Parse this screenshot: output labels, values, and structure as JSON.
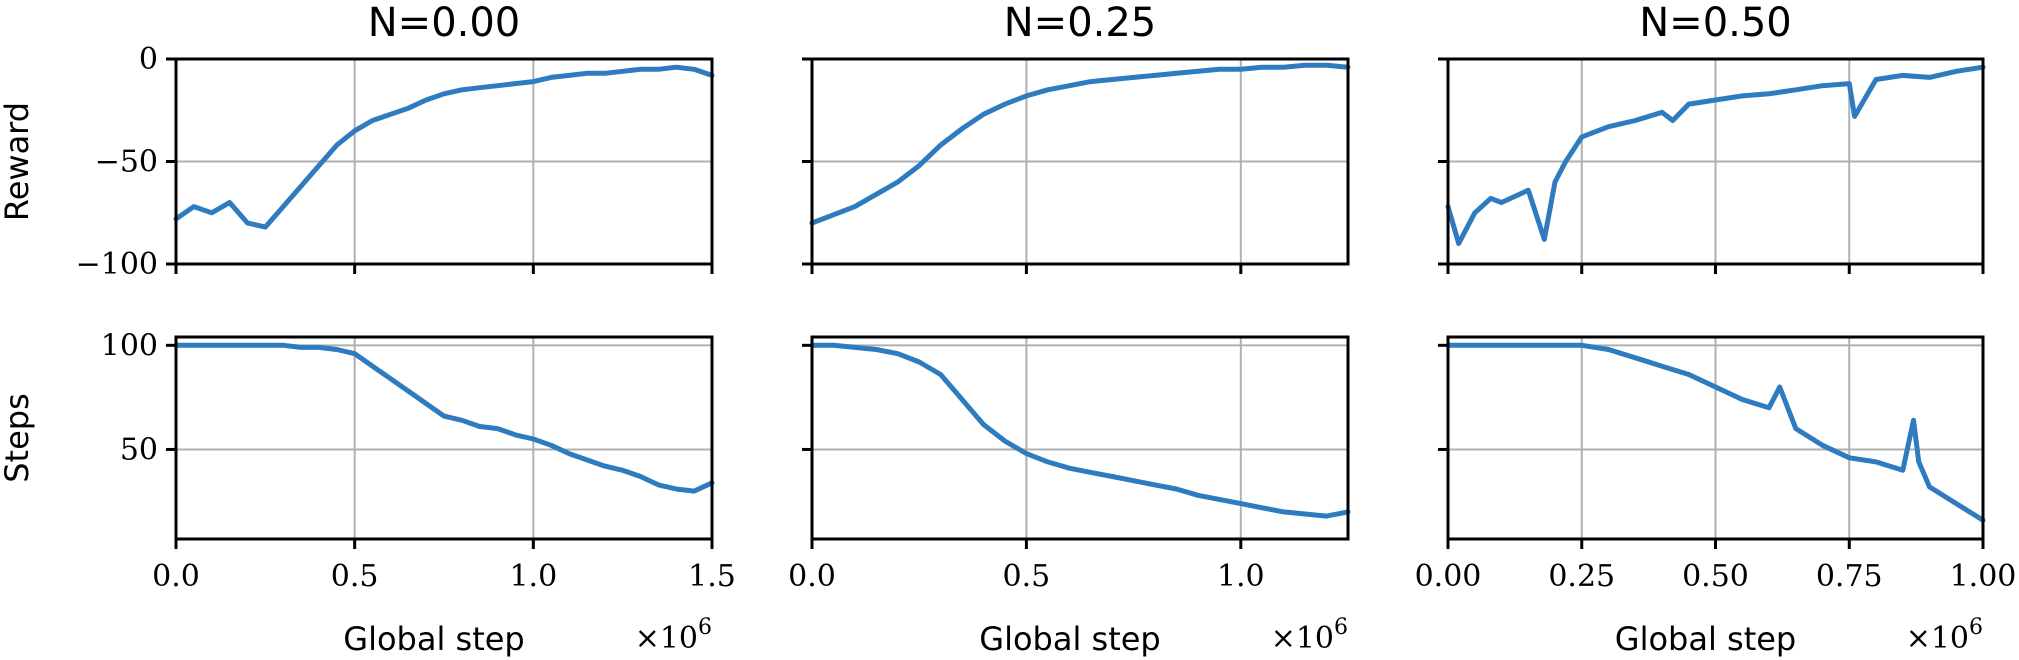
{
  "chart_data": [
    {
      "type": "line",
      "title": "N=0.00",
      "row": "reward",
      "ylabel": "Reward",
      "xlabel": "",
      "xlim": [
        0,
        1.5
      ],
      "ylim": [
        -100,
        0
      ],
      "yticks": [
        0,
        -50,
        -100
      ],
      "ytick_labels": [
        "0",
        "−50",
        "−100"
      ],
      "xticks": [
        0.0,
        0.5,
        1.0,
        1.5
      ],
      "xtick_labels": [],
      "x_scale_label": "",
      "grid": true,
      "series": [
        {
          "x": [
            0.0,
            0.05,
            0.1,
            0.15,
            0.2,
            0.25,
            0.3,
            0.35,
            0.4,
            0.45,
            0.5,
            0.55,
            0.6,
            0.65,
            0.7,
            0.75,
            0.8,
            0.85,
            0.9,
            0.95,
            1.0,
            1.05,
            1.1,
            1.15,
            1.2,
            1.25,
            1.3,
            1.35,
            1.4,
            1.45,
            1.5
          ],
          "y": [
            -78,
            -72,
            -75,
            -70,
            -80,
            -82,
            -72,
            -62,
            -52,
            -42,
            -35,
            -30,
            -27,
            -24,
            -20,
            -17,
            -15,
            -14,
            -13,
            -12,
            -11,
            -9,
            -8,
            -7,
            -7,
            -6,
            -5,
            -5,
            -4,
            -5,
            -8
          ]
        }
      ]
    },
    {
      "type": "line",
      "title": "N=0.25",
      "row": "reward",
      "ylabel": "",
      "xlabel": "",
      "xlim": [
        0,
        1.25
      ],
      "ylim": [
        -100,
        0
      ],
      "yticks": [
        0,
        -50,
        -100
      ],
      "ytick_labels": [],
      "xticks": [
        0.0,
        0.5,
        1.0
      ],
      "xtick_labels": [],
      "x_scale_label": "",
      "grid": true,
      "series": [
        {
          "x": [
            0.0,
            0.05,
            0.1,
            0.15,
            0.2,
            0.25,
            0.3,
            0.35,
            0.4,
            0.45,
            0.5,
            0.55,
            0.6,
            0.65,
            0.7,
            0.75,
            0.8,
            0.85,
            0.9,
            0.95,
            1.0,
            1.05,
            1.1,
            1.15,
            1.2,
            1.25
          ],
          "y": [
            -80,
            -76,
            -72,
            -66,
            -60,
            -52,
            -42,
            -34,
            -27,
            -22,
            -18,
            -15,
            -13,
            -11,
            -10,
            -9,
            -8,
            -7,
            -6,
            -5,
            -5,
            -4,
            -4,
            -3,
            -3,
            -4
          ]
        }
      ]
    },
    {
      "type": "line",
      "title": "N=0.50",
      "row": "reward",
      "ylabel": "",
      "xlabel": "",
      "xlim": [
        0,
        1.0
      ],
      "ylim": [
        -100,
        0
      ],
      "yticks": [
        0,
        -50,
        -100
      ],
      "ytick_labels": [],
      "xticks": [
        0.0,
        0.25,
        0.5,
        0.75,
        1.0
      ],
      "xtick_labels": [],
      "x_scale_label": "",
      "grid": true,
      "series": [
        {
          "x": [
            0.0,
            0.02,
            0.05,
            0.08,
            0.1,
            0.15,
            0.18,
            0.2,
            0.22,
            0.25,
            0.3,
            0.35,
            0.4,
            0.42,
            0.45,
            0.5,
            0.55,
            0.6,
            0.65,
            0.7,
            0.75,
            0.76,
            0.8,
            0.85,
            0.9,
            0.95,
            1.0
          ],
          "y": [
            -72,
            -90,
            -75,
            -68,
            -70,
            -64,
            -88,
            -60,
            -50,
            -38,
            -33,
            -30,
            -26,
            -30,
            -22,
            -20,
            -18,
            -17,
            -15,
            -13,
            -12,
            -28,
            -10,
            -8,
            -9,
            -6,
            -4
          ]
        }
      ]
    },
    {
      "type": "line",
      "row": "steps",
      "title": "",
      "ylabel": "Steps",
      "xlabel": "Global step",
      "xlim": [
        0,
        1.5
      ],
      "ylim": [
        7,
        104
      ],
      "yticks": [
        100,
        50
      ],
      "ytick_labels": [
        "100",
        "50"
      ],
      "xticks": [
        0.0,
        0.5,
        1.0,
        1.5
      ],
      "xtick_labels": [
        "0.0",
        "0.5",
        "1.0",
        "1.5"
      ],
      "x_scale_label": "×10",
      "x_scale_exp": "6",
      "grid": true,
      "series": [
        {
          "x": [
            0.0,
            0.1,
            0.2,
            0.3,
            0.35,
            0.4,
            0.45,
            0.5,
            0.55,
            0.6,
            0.65,
            0.7,
            0.75,
            0.8,
            0.85,
            0.9,
            0.95,
            1.0,
            1.05,
            1.1,
            1.15,
            1.2,
            1.25,
            1.3,
            1.35,
            1.4,
            1.45,
            1.5
          ],
          "y": [
            100,
            100,
            100,
            100,
            99,
            99,
            98,
            96,
            90,
            84,
            78,
            72,
            66,
            64,
            61,
            60,
            57,
            55,
            52,
            48,
            45,
            42,
            40,
            37,
            33,
            31,
            30,
            34
          ]
        }
      ]
    },
    {
      "type": "line",
      "row": "steps",
      "title": "",
      "ylabel": "",
      "xlabel": "Global step",
      "xlim": [
        0,
        1.25
      ],
      "ylim": [
        7,
        104
      ],
      "yticks": [
        100,
        50
      ],
      "ytick_labels": [],
      "xticks": [
        0.0,
        0.5,
        1.0
      ],
      "xtick_labels": [
        "0.0",
        "0.5",
        "1.0"
      ],
      "x_scale_label": "×10",
      "x_scale_exp": "6",
      "grid": true,
      "series": [
        {
          "x": [
            0.0,
            0.05,
            0.1,
            0.15,
            0.2,
            0.25,
            0.3,
            0.35,
            0.4,
            0.45,
            0.5,
            0.55,
            0.6,
            0.65,
            0.7,
            0.75,
            0.8,
            0.85,
            0.9,
            0.95,
            1.0,
            1.05,
            1.1,
            1.15,
            1.2,
            1.25
          ],
          "y": [
            100,
            100,
            99,
            98,
            96,
            92,
            86,
            74,
            62,
            54,
            48,
            44,
            41,
            39,
            37,
            35,
            33,
            31,
            28,
            26,
            24,
            22,
            20,
            19,
            18,
            20
          ]
        }
      ]
    },
    {
      "type": "line",
      "row": "steps",
      "title": "",
      "ylabel": "",
      "xlabel": "Global step",
      "xlim": [
        0,
        1.0
      ],
      "ylim": [
        7,
        104
      ],
      "yticks": [
        100,
        50
      ],
      "ytick_labels": [],
      "xticks": [
        0.0,
        0.25,
        0.5,
        0.75,
        1.0
      ],
      "xtick_labels": [
        "0.00",
        "0.25",
        "0.50",
        "0.75",
        "1.00"
      ],
      "x_scale_label": "×10",
      "x_scale_exp": "6",
      "grid": true,
      "series": [
        {
          "x": [
            0.0,
            0.1,
            0.2,
            0.25,
            0.3,
            0.35,
            0.4,
            0.45,
            0.5,
            0.55,
            0.6,
            0.62,
            0.65,
            0.7,
            0.75,
            0.8,
            0.85,
            0.87,
            0.88,
            0.9,
            0.95,
            1.0
          ],
          "y": [
            100,
            100,
            100,
            100,
            98,
            94,
            90,
            86,
            80,
            74,
            70,
            80,
            60,
            52,
            46,
            44,
            40,
            64,
            44,
            32,
            24,
            16
          ]
        }
      ]
    }
  ]
}
